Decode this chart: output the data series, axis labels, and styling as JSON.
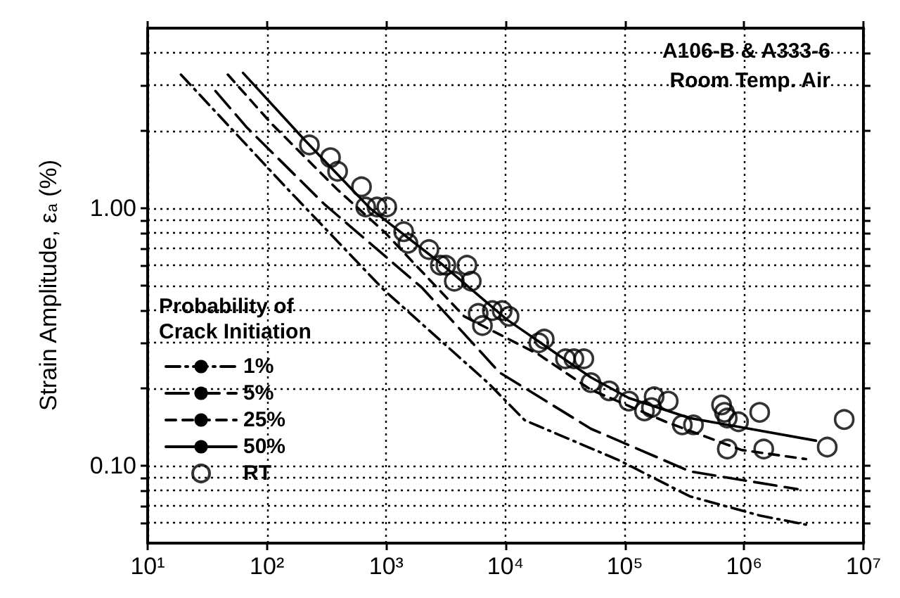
{
  "chart_data": {
    "type": "line",
    "ylabel": "Strain Amplitude, ε$_{a}$ (%)",
    "legend_title": "Probability of\nCrack Initiation",
    "annotations": [
      "A106-B & A333-6",
      "Room Temp. Air"
    ],
    "log": "xy",
    "grid": true,
    "legend": "left",
    "xlim": [
      10,
      10000000
    ],
    "xticks": [
      {
        "value": 10,
        "label": "10¹"
      },
      {
        "value": 100,
        "label": "10²"
      },
      {
        "value": 1000,
        "label": "10³"
      },
      {
        "value": 10000,
        "label": "10⁴"
      },
      {
        "value": 100000,
        "label": "10⁵"
      },
      {
        "value": 1000000,
        "label": "10⁶"
      },
      {
        "value": 10000000,
        "label": "10⁷"
      }
    ],
    "ylim": [
      0.05,
      5
    ],
    "yticks": [
      {
        "value": 0.06,
        "label": null
      },
      {
        "value": 0.07,
        "label": null
      },
      {
        "value": 0.08,
        "label": null
      },
      {
        "value": 0.09,
        "label": null
      },
      {
        "value": 0.1,
        "label": "0.10"
      },
      {
        "value": 0.2,
        "label": null
      },
      {
        "value": 0.3,
        "label": null
      },
      {
        "value": 0.4,
        "label": null
      },
      {
        "value": 0.5,
        "label": null
      },
      {
        "value": 0.6,
        "label": null
      },
      {
        "value": 0.7,
        "label": null
      },
      {
        "value": 0.8,
        "label": null
      },
      {
        "value": 0.9,
        "label": null
      },
      {
        "value": 1,
        "label": "1.00"
      },
      {
        "value": 2,
        "label": null
      },
      {
        "value": 3,
        "label": null
      },
      {
        "value": 4,
        "label": null
      }
    ],
    "series": [
      {
        "name": "1%",
        "line_style": "dashdot",
        "marker": "none",
        "color": "#000000",
        "x": [
          19,
          143,
          960,
          7100,
          14500,
          89000,
          350000,
          1350000,
          3300000
        ],
        "values": [
          3.3,
          1.21,
          0.48,
          0.21,
          0.15,
          0.105,
          0.076,
          0.064,
          0.059
        ]
      },
      {
        "name": "5%",
        "line_style": "longdash",
        "marker": "none",
        "color": "#000000",
        "x": [
          37,
          67,
          300,
          2000,
          8900,
          52000,
          350000,
          2800000
        ],
        "values": [
          2.85,
          2.07,
          1.04,
          0.49,
          0.23,
          0.139,
          0.095,
          0.081
        ]
      },
      {
        "name": "25%",
        "line_style": "dashed",
        "marker": "none",
        "color": "#000000",
        "x": [
          47,
          109,
          390,
          960,
          4500,
          19000,
          52000,
          220000,
          950000,
          3300000
        ],
        "values": [
          3.3,
          2.13,
          1.18,
          0.81,
          0.38,
          0.27,
          0.197,
          0.148,
          0.115,
          0.106
        ]
      },
      {
        "name": "50%",
        "line_style": "solid",
        "marker": "none",
        "color": "#000000",
        "x": [
          63,
          209,
          729,
          3000,
          10200,
          52000,
          108000,
          350000,
          4000000
        ],
        "values": [
          3.35,
          1.83,
          1.0,
          0.6,
          0.37,
          0.22,
          0.183,
          0.153,
          0.125
        ]
      },
      {
        "name": "RT",
        "type": "scatter",
        "marker": "circle",
        "color": "#000000",
        "x": [
          227,
          341,
          391,
          620,
          673,
          836,
          1010,
          1400,
          1520,
          2280,
          2840,
          3160,
          4750,
          3720,
          5160,
          5900,
          6400,
          7750,
          9370,
          10700,
          19000,
          21100,
          31800,
          37400,
          45300,
          51900,
          73900,
          108000,
          146000,
          167000,
          176000,
          231000,
          303000,
          376000,
          647000,
          684000,
          722000,
          897000,
          1350000,
          722000,
          1460000,
          4970000,
          6900000
        ],
        "values": [
          1.76,
          1.57,
          1.39,
          1.21,
          1.01,
          1.01,
          1.01,
          0.81,
          0.73,
          0.69,
          0.6,
          0.6,
          0.6,
          0.52,
          0.52,
          0.39,
          0.35,
          0.4,
          0.4,
          0.38,
          0.3,
          0.31,
          0.26,
          0.26,
          0.26,
          0.21,
          0.195,
          0.178,
          0.163,
          0.168,
          0.185,
          0.178,
          0.144,
          0.144,
          0.172,
          0.161,
          0.153,
          0.148,
          0.161,
          0.116,
          0.116,
          0.118,
          0.151
        ]
      }
    ]
  }
}
